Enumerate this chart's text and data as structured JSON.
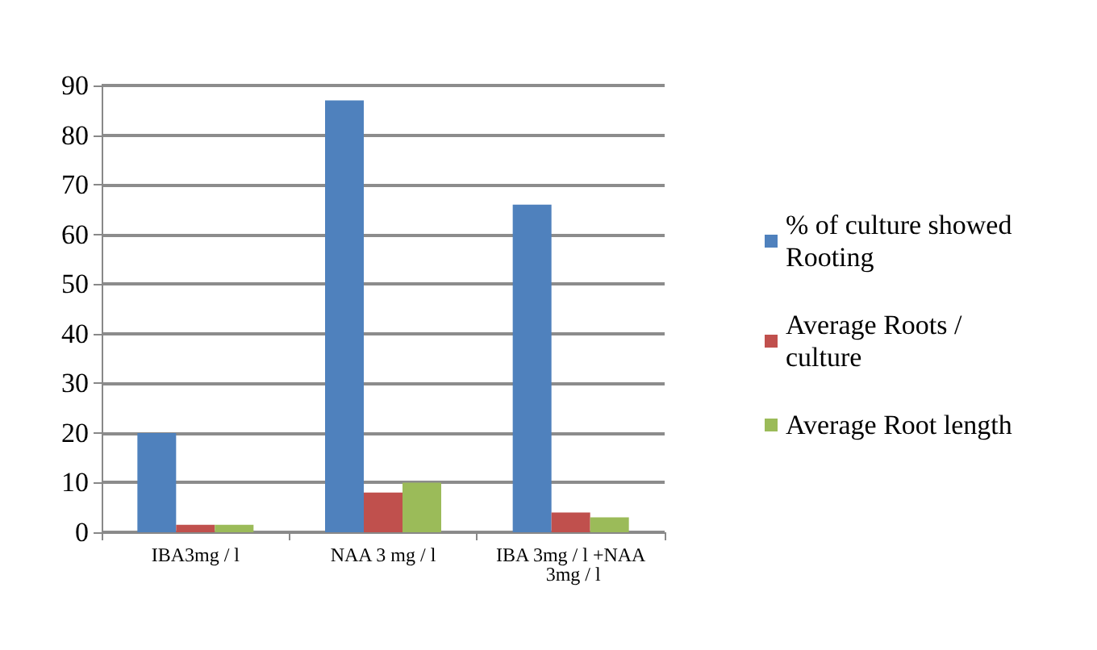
{
  "chart_data": {
    "type": "bar",
    "categories": [
      "IBA3mg / l",
      "NAA 3 mg / l",
      "IBA 3mg / l +NAA 3mg / l"
    ],
    "series": [
      {
        "name": "% of culture showed Rooting",
        "color": "#4f81bd",
        "values": [
          20,
          87,
          66
        ]
      },
      {
        "name": "Average Roots / culture",
        "color": "#c0504d",
        "values": [
          1.5,
          8,
          4
        ]
      },
      {
        "name": "Average Root length",
        "color": "#9bbb59",
        "values": [
          1.5,
          10,
          3
        ]
      }
    ],
    "ylim": [
      0,
      90
    ],
    "yticks": [
      0,
      10,
      20,
      30,
      40,
      50,
      60,
      70,
      80,
      90
    ],
    "grid": "y",
    "legend": "right"
  }
}
